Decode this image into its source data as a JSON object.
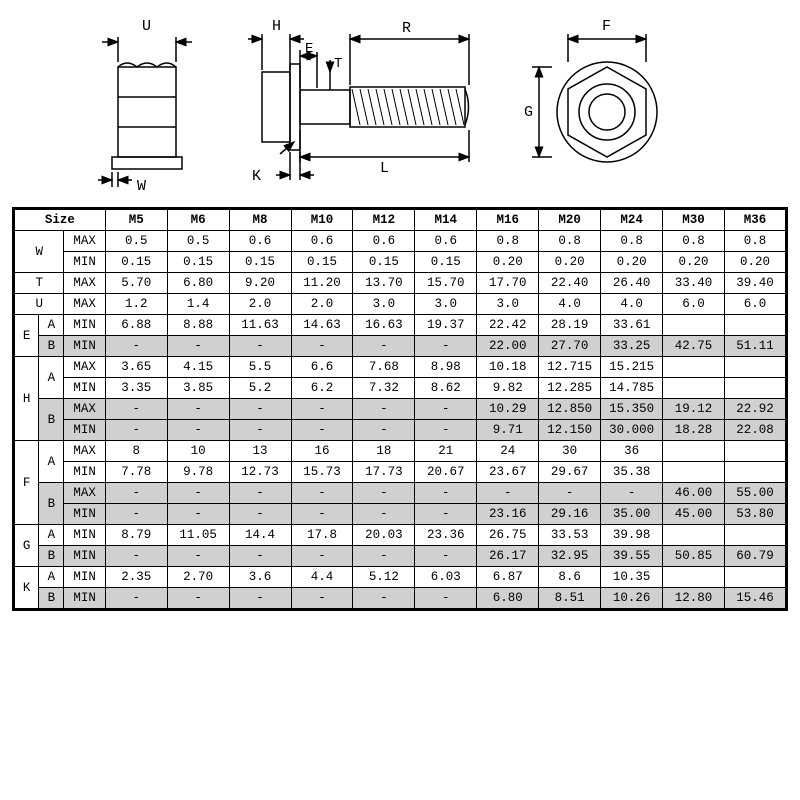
{
  "diagram_labels": {
    "U": "U",
    "W": "W",
    "H": "H",
    "E": "E",
    "T": "T",
    "K": "K",
    "R": "R",
    "L": "L",
    "F": "F",
    "G": "G"
  },
  "colors": {
    "line": "#000000",
    "bg": "#ffffff",
    "shade": "#d0d0d0"
  },
  "table": {
    "header": {
      "size": "Size",
      "cols": [
        "M5",
        "M6",
        "M8",
        "M10",
        "M12",
        "M14",
        "M16",
        "M20",
        "M24",
        "M30",
        "M36"
      ]
    },
    "rows": [
      {
        "letter": "W",
        "sub": "",
        "mm": "MAX",
        "shade": false,
        "vals": [
          "0.5",
          "0.5",
          "0.6",
          "0.6",
          "0.6",
          "0.6",
          "0.8",
          "0.8",
          "0.8",
          "0.8",
          "0.8"
        ]
      },
      {
        "letter": "",
        "sub": "",
        "mm": "MIN",
        "shade": false,
        "vals": [
          "0.15",
          "0.15",
          "0.15",
          "0.15",
          "0.15",
          "0.15",
          "0.20",
          "0.20",
          "0.20",
          "0.20",
          "0.20"
        ]
      },
      {
        "letter": "T",
        "sub": "",
        "mm": "MAX",
        "shade": false,
        "vals": [
          "5.70",
          "6.80",
          "9.20",
          "11.20",
          "13.70",
          "15.70",
          "17.70",
          "22.40",
          "26.40",
          "33.40",
          "39.40"
        ]
      },
      {
        "letter": "U",
        "sub": "",
        "mm": "MAX",
        "shade": false,
        "vals": [
          "1.2",
          "1.4",
          "2.0",
          "2.0",
          "3.0",
          "3.0",
          "3.0",
          "4.0",
          "4.0",
          "6.0",
          "6.0"
        ]
      },
      {
        "letter": "E",
        "sub": "A",
        "mm": "MIN",
        "shade": false,
        "vals": [
          "6.88",
          "8.88",
          "11.63",
          "14.63",
          "16.63",
          "19.37",
          "22.42",
          "28.19",
          "33.61",
          "",
          ""
        ]
      },
      {
        "letter": "",
        "sub": "B",
        "mm": "MIN",
        "shade": true,
        "vals": [
          "-",
          "-",
          "-",
          "-",
          "-",
          "-",
          "22.00",
          "27.70",
          "33.25",
          "42.75",
          "51.11"
        ]
      },
      {
        "letter": "H",
        "sub": "A",
        "mm": "MAX",
        "shade": false,
        "vals": [
          "3.65",
          "4.15",
          "5.5",
          "6.6",
          "7.68",
          "8.98",
          "10.18",
          "12.715",
          "15.215",
          "",
          ""
        ]
      },
      {
        "letter": "",
        "sub": "",
        "mm": "MIN",
        "shade": false,
        "vals": [
          "3.35",
          "3.85",
          "5.2",
          "6.2",
          "7.32",
          "8.62",
          "9.82",
          "12.285",
          "14.785",
          "",
          ""
        ]
      },
      {
        "letter": "",
        "sub": "B",
        "mm": "MAX",
        "shade": true,
        "vals": [
          "-",
          "-",
          "-",
          "-",
          "-",
          "-",
          "10.29",
          "12.850",
          "15.350",
          "19.12",
          "22.92"
        ]
      },
      {
        "letter": "",
        "sub": "",
        "mm": "MIN",
        "shade": true,
        "vals": [
          "-",
          "-",
          "-",
          "-",
          "-",
          "-",
          "9.71",
          "12.150",
          "30.000",
          "18.28",
          "22.08"
        ]
      },
      {
        "letter": "F",
        "sub": "A",
        "mm": "MAX",
        "shade": false,
        "vals": [
          "8",
          "10",
          "13",
          "16",
          "18",
          "21",
          "24",
          "30",
          "36",
          "",
          ""
        ]
      },
      {
        "letter": "",
        "sub": "",
        "mm": "MIN",
        "shade": false,
        "vals": [
          "7.78",
          "9.78",
          "12.73",
          "15.73",
          "17.73",
          "20.67",
          "23.67",
          "29.67",
          "35.38",
          "",
          ""
        ]
      },
      {
        "letter": "",
        "sub": "B",
        "mm": "MAX",
        "shade": true,
        "vals": [
          "-",
          "-",
          "-",
          "-",
          "-",
          "-",
          "-",
          "-",
          "-",
          "46.00",
          "55.00"
        ]
      },
      {
        "letter": "",
        "sub": "",
        "mm": "MIN",
        "shade": true,
        "vals": [
          "-",
          "-",
          "-",
          "-",
          "-",
          "-",
          "23.16",
          "29.16",
          "35.00",
          "45.00",
          "53.80"
        ]
      },
      {
        "letter": "G",
        "sub": "A",
        "mm": "MIN",
        "shade": false,
        "vals": [
          "8.79",
          "11.05",
          "14.4",
          "17.8",
          "20.03",
          "23.36",
          "26.75",
          "33.53",
          "39.98",
          "",
          ""
        ]
      },
      {
        "letter": "",
        "sub": "B",
        "mm": "MIN",
        "shade": true,
        "vals": [
          "-",
          "-",
          "-",
          "-",
          "-",
          "-",
          "26.17",
          "32.95",
          "39.55",
          "50.85",
          "60.79"
        ]
      },
      {
        "letter": "K",
        "sub": "A",
        "mm": "MIN",
        "shade": false,
        "vals": [
          "2.35",
          "2.70",
          "3.6",
          "4.4",
          "5.12",
          "6.03",
          "6.87",
          "8.6",
          "10.35",
          "",
          ""
        ]
      },
      {
        "letter": "",
        "sub": "B",
        "mm": "MIN",
        "shade": true,
        "vals": [
          "-",
          "-",
          "-",
          "-",
          "-",
          "-",
          "6.80",
          "8.51",
          "10.26",
          "12.80",
          "15.46"
        ]
      }
    ],
    "letter_spans": {
      "W": 2,
      "T": 1,
      "U": 1,
      "E": 2,
      "H": 4,
      "F": 4,
      "G": 2,
      "K": 2
    },
    "sub_spans": [
      2,
      0,
      1,
      1,
      1,
      1,
      2,
      0,
      2,
      0,
      2,
      0,
      2,
      0,
      1,
      1,
      1,
      1
    ]
  }
}
